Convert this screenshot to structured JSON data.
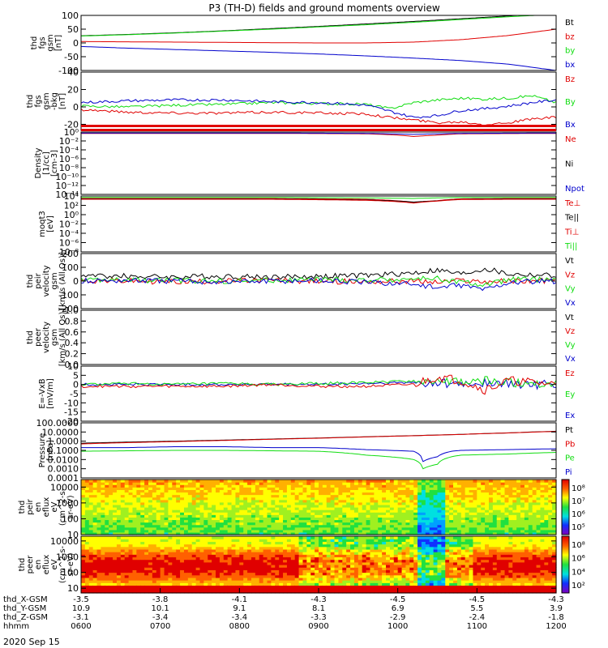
{
  "title": "P3 (TH-D) fields and ground moments overview",
  "date_label": "2020 Sep 15",
  "colors": {
    "black": "#000000",
    "red": "#e00000",
    "green": "#10dd10",
    "blue": "#0000cc"
  },
  "chart_data": [
    {
      "type": "line",
      "id": "p1",
      "ylabel_lines": [
        "thd",
        "fgs",
        "gsm",
        "[nT]"
      ],
      "ylim": [
        -100,
        100
      ],
      "ticks": [
        -100,
        -50,
        0,
        50,
        100
      ],
      "tick_labels": [
        "-100",
        "-50",
        "0",
        "50",
        "100"
      ],
      "legend": [
        {
          "name": "Bt",
          "color": "black"
        },
        {
          "name": "bz",
          "color": "red"
        },
        {
          "name": "by",
          "color": "green"
        },
        {
          "name": "bx",
          "color": "blue"
        }
      ],
      "x": [
        0,
        0.1,
        0.2,
        0.3,
        0.4,
        0.5,
        0.6,
        0.7,
        0.8,
        0.9,
        1.0
      ],
      "series": [
        {
          "name": "Bt",
          "color": "black",
          "values": [
            26,
            31,
            37,
            44,
            52,
            60,
            69,
            78,
            88,
            98,
            110
          ]
        },
        {
          "name": "bz",
          "color": "red",
          "values": [
            5,
            4,
            3,
            2,
            1,
            0,
            0,
            3,
            12,
            27,
            50
          ]
        },
        {
          "name": "by",
          "color": "green",
          "values": [
            25,
            30,
            36,
            43,
            50,
            58,
            66,
            75,
            85,
            95,
            104
          ]
        },
        {
          "name": "bx",
          "color": "blue",
          "values": [
            -13,
            -19,
            -24,
            -29,
            -34,
            -40,
            -47,
            -55,
            -64,
            -77,
            -100
          ]
        }
      ]
    },
    {
      "type": "line",
      "id": "p2",
      "ylabel_lines": [
        "thd",
        "fgs",
        "gsm",
        "-bkg",
        "[nT]"
      ],
      "ylim": [
        -27,
        40
      ],
      "ticks": [
        -20,
        0,
        20,
        40
      ],
      "tick_labels": [
        "-20",
        "0",
        "20",
        "40"
      ],
      "legend": [
        {
          "name": "Bz",
          "color": "red"
        },
        {
          "name": "By",
          "color": "green"
        },
        {
          "name": "Bx",
          "color": "blue"
        }
      ],
      "x": [
        0,
        0.1,
        0.2,
        0.3,
        0.4,
        0.5,
        0.6,
        0.65,
        0.7,
        0.75,
        0.8,
        0.85,
        0.9,
        0.95,
        1.0
      ],
      "series": [
        {
          "name": "Bz",
          "color": "red",
          "values": [
            -3,
            -6,
            -7,
            -7,
            -6,
            -7,
            -8,
            -12,
            -15,
            -18,
            -17,
            -20,
            -18,
            -14,
            -12
          ]
        },
        {
          "name": "By",
          "color": "green",
          "values": [
            1,
            0,
            2,
            3,
            5,
            4,
            3,
            -2,
            5,
            8,
            10,
            9,
            10,
            13,
            5
          ]
        },
        {
          "name": "Bx",
          "color": "blue",
          "values": [
            5,
            7,
            8,
            8,
            6,
            5,
            2,
            -5,
            -12,
            -10,
            -4,
            -2,
            1,
            5,
            8
          ]
        }
      ]
    },
    {
      "type": "line",
      "id": "p3",
      "ylabel_lines": [
        "Density",
        "[1/cc]",
        "[cm-3]"
      ],
      "scale": "log",
      "ylim": [
        1e-14,
        1
      ],
      "ticks": [
        1e-14,
        1e-12,
        1e-10,
        1e-08,
        1e-06,
        0.0001,
        0.01,
        1
      ],
      "tick_labels": [
        "10⁻¹⁴",
        "10⁻¹²",
        "10⁻¹⁰",
        "10⁻⁸",
        "10⁻⁶",
        "10⁻⁴",
        "10⁻²",
        "10⁰"
      ],
      "legend": [
        {
          "name": "Ne",
          "color": "red"
        },
        {
          "name": "Ni",
          "color": "black"
        },
        {
          "name": "Npot",
          "color": "blue"
        }
      ],
      "x": [
        0,
        0.2,
        0.4,
        0.6,
        0.7,
        0.75,
        0.8,
        1.0
      ],
      "series": [
        {
          "name": "Ne",
          "color": "red",
          "values": [
            0.5,
            0.5,
            0.5,
            0.4,
            0.1,
            0.2,
            0.4,
            0.5
          ]
        },
        {
          "name": "Npot",
          "color": "blue",
          "values": [
            0.6,
            0.6,
            0.6,
            0.5,
            0.3,
            0.4,
            0.5,
            0.6
          ]
        }
      ]
    },
    {
      "type": "line",
      "id": "p4",
      "ylabel_lines": [
        "moqt3",
        "[eV]"
      ],
      "scale": "log",
      "ylim": [
        1e-08,
        10000.0
      ],
      "ticks": [
        1e-08,
        1e-06,
        0.0001,
        0.01,
        1,
        100.0,
        10000.0
      ],
      "tick_labels": [
        "10⁻⁸",
        "10⁻⁶",
        "10⁻⁴",
        "10⁻²",
        "10⁰",
        "10²",
        "10⁴"
      ],
      "legend": [
        {
          "name": "Te⊥",
          "color": "red"
        },
        {
          "name": "Te||",
          "color": "black"
        },
        {
          "name": "Ti⊥",
          "color": "red"
        },
        {
          "name": "Ti||",
          "color": "green"
        }
      ],
      "x": [
        0,
        0.2,
        0.4,
        0.6,
        0.7,
        0.75,
        0.8,
        0.9,
        1.0
      ],
      "series": [
        {
          "name": "Ti||",
          "color": "green",
          "values": [
            5000,
            5000,
            5000,
            4000,
            3000,
            4000,
            5000,
            5000,
            5000
          ]
        },
        {
          "name": "Ti⊥",
          "color": "red",
          "values": [
            3000,
            3000,
            3000,
            2000,
            400,
            1000,
            2500,
            3000,
            3000
          ]
        },
        {
          "name": "Te||",
          "color": "black",
          "values": [
            2500,
            2500,
            2400,
            1500,
            500,
            900,
            2000,
            2500,
            2500
          ]
        },
        {
          "name": "Te⊥",
          "color": "red",
          "values": [
            2000,
            2000,
            2000,
            1200,
            300,
            800,
            1800,
            2000,
            2000
          ]
        }
      ]
    },
    {
      "type": "line",
      "id": "p5",
      "ylabel_lines": [
        "thd",
        "peir",
        "velocity",
        "gsm",
        "[km/s (All Qs)]"
      ],
      "ylim": [
        -200,
        200
      ],
      "ticks": [
        -200,
        -100,
        0,
        100,
        200
      ],
      "tick_labels": [
        "-200",
        "-100",
        "0",
        "100",
        "200"
      ],
      "legend": [
        {
          "name": "Vt",
          "color": "black"
        },
        {
          "name": "Vz",
          "color": "red"
        },
        {
          "name": "Vy",
          "color": "green"
        },
        {
          "name": "Vx",
          "color": "blue"
        }
      ],
      "x": [
        0,
        0.1,
        0.2,
        0.3,
        0.4,
        0.5,
        0.6,
        0.7,
        0.75,
        0.8,
        0.85,
        0.9,
        1.0
      ],
      "series": [
        {
          "name": "Vt",
          "color": "black",
          "values": [
            40,
            35,
            30,
            35,
            30,
            35,
            40,
            60,
            80,
            50,
            90,
            50,
            40
          ]
        },
        {
          "name": "Vz",
          "color": "red",
          "values": [
            5,
            0,
            -5,
            0,
            5,
            0,
            -5,
            0,
            -10,
            5,
            -5,
            0,
            5
          ]
        },
        {
          "name": "Vy",
          "color": "green",
          "values": [
            10,
            5,
            5,
            0,
            5,
            10,
            5,
            15,
            20,
            -10,
            -30,
            10,
            10
          ]
        },
        {
          "name": "Vx",
          "color": "blue",
          "values": [
            0,
            5,
            0,
            -5,
            0,
            5,
            -10,
            -20,
            -50,
            -30,
            -60,
            -10,
            0
          ]
        }
      ]
    },
    {
      "type": "line",
      "id": "p6",
      "ylabel_lines": [
        "thd",
        "peer",
        "velocity",
        "gsm",
        "[km/s (All Qs)]"
      ],
      "ylim": [
        0,
        1
      ],
      "ticks": [
        0,
        0.2,
        0.4,
        0.6,
        0.8,
        1.0
      ],
      "tick_labels": [
        "0.0",
        "0.2",
        "0.4",
        "0.6",
        "0.8",
        "1.0"
      ],
      "legend": [
        {
          "name": "Vt",
          "color": "black"
        },
        {
          "name": "Vz",
          "color": "red"
        },
        {
          "name": "Vy",
          "color": "green"
        },
        {
          "name": "Vx",
          "color": "blue"
        }
      ],
      "x": [],
      "series": []
    },
    {
      "type": "line",
      "id": "p7",
      "ylabel_lines": [
        "E=-VxB",
        "[mV/m]"
      ],
      "ylim": [
        -20,
        10
      ],
      "ticks": [
        -20,
        -15,
        -10,
        -5,
        0,
        5,
        10
      ],
      "tick_labels": [
        "-20",
        "-15",
        "-10",
        "-5",
        "0",
        "5",
        "10"
      ],
      "legend": [
        {
          "name": "Ez",
          "color": "red"
        },
        {
          "name": "Ey",
          "color": "green"
        },
        {
          "name": "Ex",
          "color": "blue"
        }
      ],
      "x": [
        0,
        0.1,
        0.2,
        0.3,
        0.4,
        0.5,
        0.6,
        0.7,
        0.75,
        0.8,
        0.85,
        0.9,
        1.0
      ],
      "series": [
        {
          "name": "Ex",
          "color": "blue",
          "values": [
            0,
            0,
            0,
            0,
            0,
            0,
            0.5,
            1,
            1,
            0,
            1,
            0,
            0
          ]
        },
        {
          "name": "Ey",
          "color": "green",
          "values": [
            0,
            0.5,
            0,
            0.5,
            0,
            0.5,
            1,
            2,
            2,
            1,
            2,
            1,
            0.5
          ]
        },
        {
          "name": "Ez",
          "color": "red",
          "values": [
            -1,
            -1,
            -1,
            -1,
            0,
            -1,
            -1,
            0,
            4,
            2,
            -3,
            2,
            0
          ]
        }
      ]
    },
    {
      "type": "line",
      "id": "p8",
      "ylabel_lines": [
        "Pressure",
        "[nPa]"
      ],
      "scale": "log",
      "ylim": [
        0.0001,
        100
      ],
      "ticks": [
        0.0001,
        0.001,
        0.01,
        0.1,
        1,
        10,
        100
      ],
      "tick_labels": [
        "0.0001",
        "0.0010",
        "0.0100",
        "0.1000",
        "1.0000",
        "10.0000",
        "100.0000"
      ],
      "legend": [
        {
          "name": "Pt",
          "color": "black"
        },
        {
          "name": "Pb",
          "color": "red"
        },
        {
          "name": "Pe",
          "color": "green"
        },
        {
          "name": "Pi",
          "color": "blue"
        }
      ],
      "x": [
        0,
        0.1,
        0.2,
        0.3,
        0.4,
        0.5,
        0.6,
        0.7,
        0.72,
        0.75,
        0.78,
        0.8,
        0.9,
        1.0
      ],
      "series": [
        {
          "name": "Pt",
          "color": "black",
          "values": [
            0.6,
            0.8,
            1.0,
            1.3,
            1.7,
            2.2,
            3,
            4,
            4.3,
            4.7,
            5.2,
            5.5,
            8,
            12
          ]
        },
        {
          "name": "Pb",
          "color": "red",
          "values": [
            0.5,
            0.7,
            0.9,
            1.2,
            1.6,
            2.1,
            2.9,
            3.9,
            4.2,
            4.6,
            5.1,
            5.4,
            7.9,
            11.5
          ]
        },
        {
          "name": "Pi",
          "color": "blue",
          "values": [
            0.2,
            0.2,
            0.25,
            0.25,
            0.2,
            0.2,
            0.12,
            0.08,
            0.006,
            0.02,
            0.08,
            0.1,
            0.12,
            0.15
          ]
        },
        {
          "name": "Pe",
          "color": "green",
          "values": [
            0.08,
            0.09,
            0.1,
            0.1,
            0.09,
            0.08,
            0.03,
            0.01,
            0.001,
            0.003,
            0.02,
            0.03,
            0.04,
            0.06
          ]
        }
      ]
    },
    {
      "type": "heatmap",
      "id": "p9",
      "ylabel_lines": [
        "thd",
        "peir",
        "en",
        "eflux",
        "eV",
        "(cm^2-s-",
        "sr-eV)"
      ],
      "scale": "log",
      "ylim": [
        10,
        30000
      ],
      "ticks": [
        10,
        100,
        1000,
        10000
      ],
      "tick_labels": [
        "10",
        "100",
        "1000",
        "10000"
      ],
      "colorbar": {
        "label": "[eV/(cm^2-s-sr-eV)(All Qs)]",
        "ticks": [
          "10⁸",
          "10⁷",
          "10⁶",
          "10⁵"
        ]
      }
    },
    {
      "type": "heatmap",
      "id": "p10",
      "ylabel_lines": [
        "thd",
        "peer",
        "en",
        "eflux",
        "eV",
        "(cm^2-s-",
        "sr-eV)"
      ],
      "scale": "log",
      "ylim": [
        5,
        20000
      ],
      "ticks": [
        10,
        100,
        1000,
        10000
      ],
      "tick_labels": [
        "10",
        "100",
        "1000",
        "10000"
      ],
      "colorbar": {
        "label": "[eV/(cm^2-s-sr-eV)]",
        "ticks": [
          "10⁸",
          "10⁶",
          "10⁴",
          "10²"
        ]
      }
    }
  ],
  "xaxis": {
    "rows": [
      {
        "label": "thd_X-GSM",
        "values": [
          "-3.5",
          "-3.8",
          "-4.1",
          "-4.3",
          "-4.5",
          "-4.5",
          "-4.3"
        ]
      },
      {
        "label": "thd_Y-GSM",
        "values": [
          "10.9",
          "10.1",
          "9.1",
          "8.1",
          "6.9",
          "5.5",
          "3.9"
        ]
      },
      {
        "label": "thd_Z-GSM",
        "values": [
          "-3.1",
          "-3.4",
          "-3.4",
          "-3.3",
          "-2.9",
          "-2.4",
          "-1.8"
        ]
      },
      {
        "label": "hhmm",
        "values": [
          "0600",
          "0700",
          "0800",
          "0900",
          "1000",
          "1100",
          "1200"
        ]
      }
    ]
  }
}
